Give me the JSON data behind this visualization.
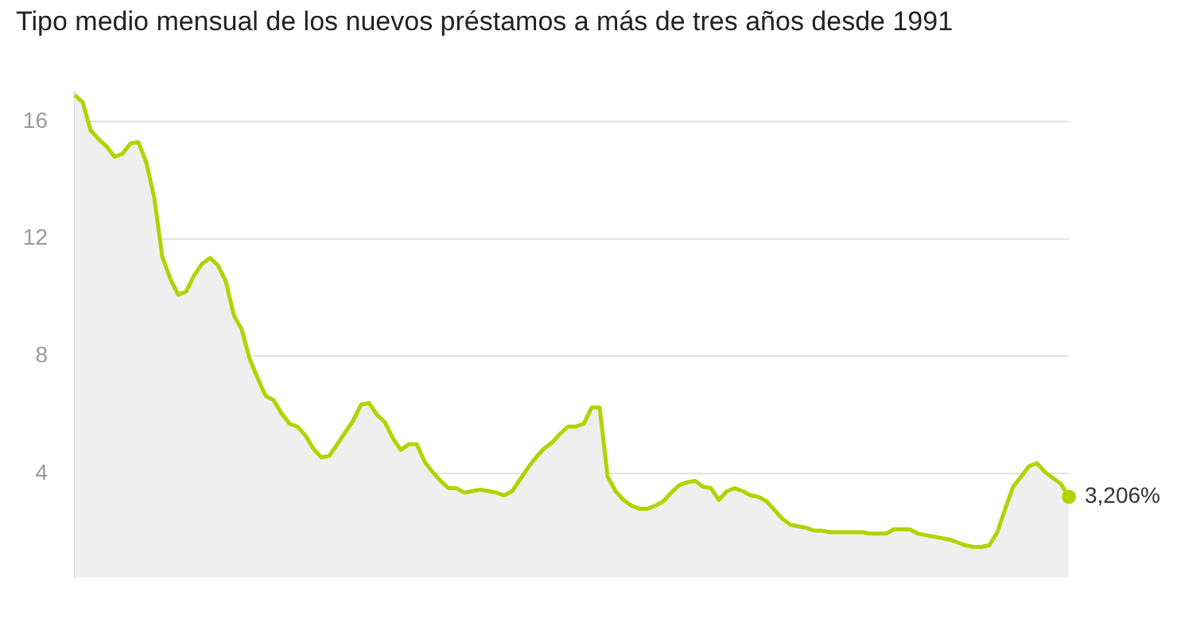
{
  "chart_data": {
    "type": "area",
    "title": "Tipo medio mensual de los nuevos préstamos a más de tres años desde 1991",
    "categories": [
      null,
      null,
      null,
      null,
      null,
      null,
      null,
      null,
      null,
      null,
      null,
      null,
      null,
      null,
      null,
      null,
      null,
      null,
      null,
      null,
      null,
      null,
      null,
      null,
      null,
      null,
      null,
      null,
      null,
      null,
      null,
      null,
      null,
      null,
      null,
      null,
      null,
      null,
      null,
      null,
      null,
      null,
      null,
      null,
      null,
      null,
      null,
      null,
      null,
      null,
      null,
      null,
      null,
      null,
      null,
      null,
      null,
      null,
      null,
      null,
      null,
      null,
      null,
      null,
      null,
      null,
      null,
      null,
      null,
      null,
      null,
      null,
      null,
      null,
      null,
      null,
      null,
      null,
      null,
      null,
      null,
      null,
      null,
      null,
      null,
      null,
      null,
      null,
      null,
      null,
      null,
      null,
      null,
      null,
      null,
      null,
      null,
      null,
      null,
      null,
      null,
      null,
      null,
      null,
      null,
      null,
      null,
      null,
      null,
      null,
      null,
      null,
      null,
      null,
      null,
      null,
      null,
      null,
      null,
      null,
      null,
      null,
      null,
      null,
      null,
      null
    ],
    "series": [
      {
        "color": "#b2d300",
        "values": [
          16.9,
          16.65,
          15.7,
          15.4,
          15.15,
          14.8,
          14.9,
          15.25,
          15.3,
          14.6,
          13.4,
          11.4,
          10.65,
          10.1,
          10.2,
          10.75,
          11.15,
          11.35,
          11.1,
          10.55,
          9.4,
          8.9,
          7.9,
          7.25,
          6.65,
          6.5,
          6.05,
          5.7,
          5.6,
          5.3,
          4.85,
          4.55,
          4.6,
          5.0,
          5.4,
          5.8,
          6.35,
          6.4,
          6.0,
          5.75,
          5.2,
          4.8,
          5.0,
          5.0,
          4.4,
          4.05,
          3.75,
          3.5,
          3.5,
          3.35,
          3.4,
          3.45,
          3.4,
          3.35,
          3.25,
          3.4,
          3.8,
          4.2,
          4.55,
          4.85,
          5.05,
          5.35,
          5.6,
          5.6,
          5.7,
          6.25,
          6.25,
          3.9,
          3.4,
          3.1,
          2.9,
          2.8,
          2.8,
          2.9,
          3.05,
          3.35,
          3.6,
          3.7,
          3.75,
          3.55,
          3.5,
          3.1,
          3.4,
          3.5,
          3.4,
          3.25,
          3.2,
          3.05,
          2.75,
          2.45,
          2.25,
          2.2,
          2.15,
          2.05,
          2.05,
          2.0,
          2.0,
          2.0,
          2.0,
          2.0,
          1.95,
          1.95,
          1.95,
          2.1,
          2.1,
          2.1,
          1.95,
          1.9,
          1.85,
          1.8,
          1.75,
          1.65,
          1.55,
          1.5,
          1.5,
          1.55,
          2.0,
          2.8,
          3.55,
          3.9,
          4.25,
          4.35,
          4.05,
          3.85,
          3.65,
          3.206
        ]
      }
    ],
    "ylim": [
      0.45,
      17
    ],
    "yticks": [
      4,
      8,
      12,
      16
    ],
    "grid": "y",
    "tick_labels": "y",
    "annotations": [
      "3,206%"
    ]
  }
}
